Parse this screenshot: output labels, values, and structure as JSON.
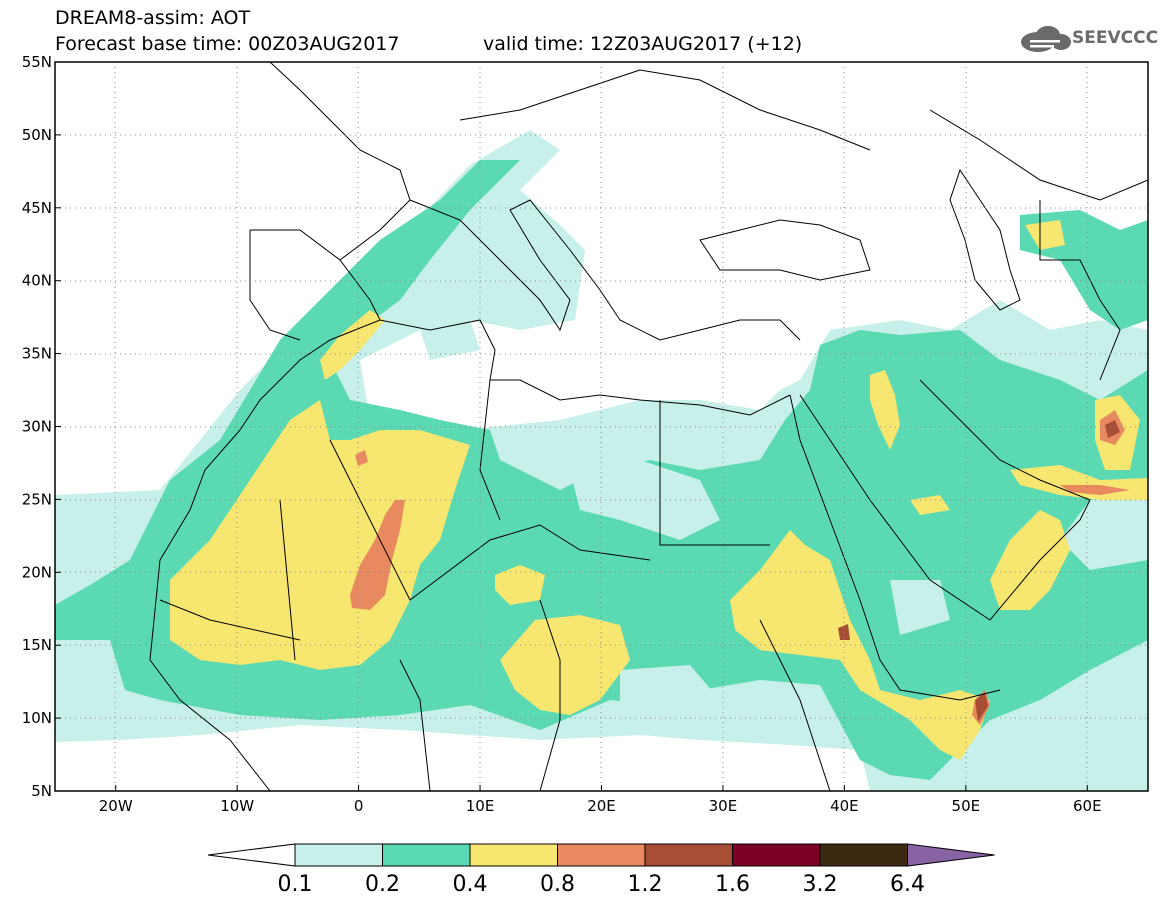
{
  "header": {
    "line1": "DREAM8-assim: AOT",
    "line2": "Forecast base time: 00Z03AUG2017",
    "valid": "valid time: 12Z03AUG2017 (+12)"
  },
  "logo": {
    "text": "SEEVCCC",
    "icon": "cloud-icon"
  },
  "map": {
    "lat_labels": [
      "55N",
      "50N",
      "45N",
      "40N",
      "35N",
      "30N",
      "25N",
      "20N",
      "15N",
      "10N",
      "5N"
    ],
    "lon_labels": [
      "20W",
      "10W",
      "0",
      "10E",
      "20E",
      "30E",
      "40E",
      "50E",
      "60E"
    ],
    "lon_range": [
      -25,
      65
    ],
    "lat_range": [
      5,
      55
    ]
  },
  "colorbar": {
    "labels": [
      "0.1",
      "0.2",
      "0.4",
      "0.8",
      "1.2",
      "1.6",
      "3.2",
      "6.4"
    ],
    "colors": [
      "#ffffff",
      "#c6f0e9",
      "#5ad9b2",
      "#f7e66f",
      "#e8895f",
      "#a84e35",
      "#7a0024",
      "#3d2812",
      "#8a63a5"
    ]
  },
  "legend_colors": {
    "c01": "#c6f0e9",
    "c02": "#5ad9b2",
    "c04": "#f7e66f",
    "c08": "#e8895f",
    "c12": "#a84e35"
  }
}
